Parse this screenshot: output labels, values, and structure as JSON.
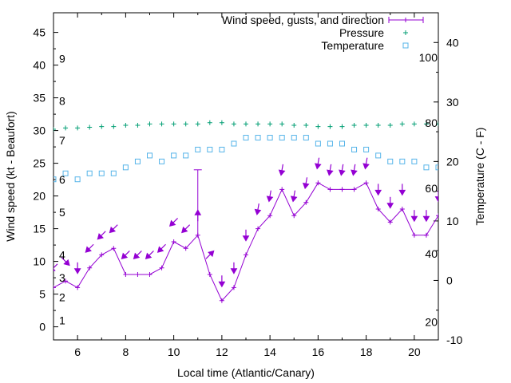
{
  "chart_data": {
    "type": "line",
    "xlabel": "Local time (Atlantic/Canary)",
    "ylabel": "Wind speed (kt - Beaufort)",
    "y2label": "Temperature (C - F)",
    "xlim": [
      5,
      21
    ],
    "ylim": [
      -2,
      48
    ],
    "y2lim": [
      -10,
      45
    ],
    "x_ticks": [
      6,
      8,
      10,
      12,
      14,
      16,
      18,
      20
    ],
    "y_ticks": [
      0,
      5,
      10,
      15,
      20,
      25,
      30,
      35,
      40,
      45
    ],
    "y2_ticks": [
      -10,
      0,
      10,
      20,
      30,
      40
    ],
    "beaufort_labels": [
      {
        "label": "1",
        "y": 1
      },
      {
        "label": "2",
        "y": 4.5
      },
      {
        "label": "3",
        "y": 7.5
      },
      {
        "label": "4",
        "y": 11
      },
      {
        "label": "5",
        "y": 17.5
      },
      {
        "label": "6",
        "y": 22.5
      },
      {
        "label": "7",
        "y": 28.5
      },
      {
        "label": "8",
        "y": 34.5
      },
      {
        "label": "9",
        "y": 41
      }
    ],
    "fahrenheit_labels": [
      {
        "label": "20",
        "y2": -7
      },
      {
        "label": "40",
        "y2": 4.5
      },
      {
        "label": "60",
        "y2": 15.5
      },
      {
        "label": "80",
        "y2": 26.5
      },
      {
        "label": "100",
        "y2": 37.5
      }
    ],
    "legend_position": "top-right",
    "series": [
      {
        "name": "Wind speed, gusts, and direction",
        "color": "#9400d3",
        "x": [
          5,
          5.5,
          6,
          6.5,
          7,
          7.5,
          8,
          8.5,
          9,
          9.5,
          10,
          10.5,
          11,
          11.5,
          12,
          12.5,
          13,
          13.5,
          14,
          14.5,
          15,
          15.5,
          16,
          16.5,
          17,
          17.5,
          18,
          18.5,
          19,
          19.5,
          20,
          20.5,
          21
        ],
        "values": [
          6,
          7,
          6,
          9,
          11,
          12,
          8,
          8,
          8,
          9,
          13,
          12,
          14,
          8,
          4,
          6,
          11,
          15,
          17,
          21,
          17,
          19,
          22,
          21,
          21,
          21,
          22,
          18,
          16,
          18,
          14,
          14,
          17
        ],
        "gust": {
          "x": 11,
          "value": 24
        },
        "arrow_offset": 3,
        "direction_deg": [
          45,
          315,
          0,
          45,
          45,
          45,
          45,
          45,
          45,
          45,
          45,
          45,
          180,
          225,
          0,
          0,
          0,
          10,
          10,
          10,
          10,
          10,
          10,
          10,
          10,
          10,
          10,
          0,
          0,
          0,
          0,
          0,
          0
        ]
      },
      {
        "name": "Pressure",
        "color": "#009e73",
        "x": [
          5,
          5.5,
          6,
          6.5,
          7,
          7.5,
          8,
          8.5,
          9,
          9.5,
          10,
          10.5,
          11,
          11.5,
          12,
          12.5,
          13,
          13.5,
          14,
          14.5,
          15,
          15.5,
          16,
          16.5,
          17,
          17.5,
          18,
          18.5,
          19,
          19.5,
          20,
          20.5,
          21
        ],
        "values": [
          30.2,
          30.4,
          30.4,
          30.5,
          30.6,
          30.6,
          30.8,
          30.8,
          31,
          31,
          31,
          31,
          31,
          31.2,
          31.2,
          31,
          31,
          31,
          31,
          31,
          30.8,
          30.8,
          30.6,
          30.6,
          30.6,
          30.8,
          30.8,
          30.8,
          30.8,
          31,
          31,
          31,
          31
        ]
      },
      {
        "name": "Temperature",
        "color": "#56b4e9",
        "x": [
          5,
          5.5,
          6,
          6.5,
          7,
          7.5,
          8,
          8.5,
          9,
          9.5,
          10,
          10.5,
          11,
          11.5,
          12,
          12.5,
          13,
          13.5,
          14,
          14.5,
          15,
          15.5,
          16,
          16.5,
          17,
          17.5,
          18,
          18.5,
          19,
          19.5,
          20,
          20.5,
          21
        ],
        "values": [
          17,
          18,
          17,
          18,
          18,
          18,
          19,
          20,
          21,
          20,
          21,
          21,
          22,
          22,
          22,
          23,
          24,
          24,
          24,
          24,
          24,
          24,
          23,
          23,
          23,
          22,
          22,
          21,
          20,
          20,
          20,
          19,
          19
        ],
        "axis": "y2"
      }
    ]
  }
}
